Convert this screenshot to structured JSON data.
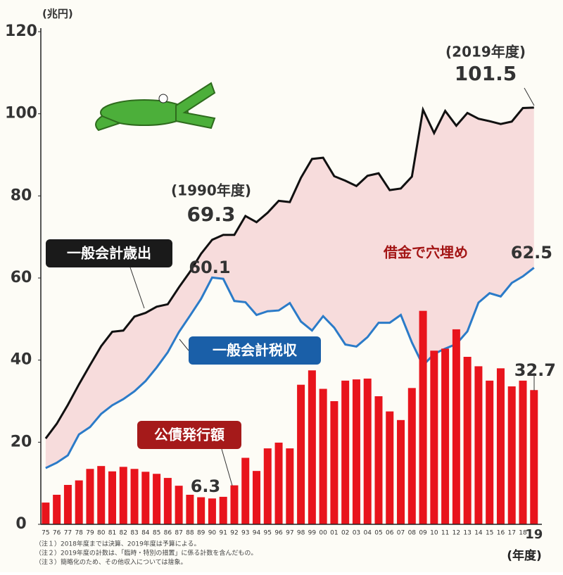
{
  "chart_data": {
    "type": "combo",
    "y_unit": "(兆円)",
    "x_label": "(年度)",
    "categories": [
      "75",
      "76",
      "77",
      "78",
      "79",
      "80",
      "81",
      "82",
      "83",
      "84",
      "85",
      "86",
      "87",
      "88",
      "89",
      "90",
      "91",
      "92",
      "93",
      "94",
      "95",
      "96",
      "97",
      "98",
      "99",
      "00",
      "01",
      "02",
      "03",
      "04",
      "05",
      "06",
      "07",
      "08",
      "09",
      "10",
      "11",
      "12",
      "13",
      "14",
      "15",
      "16",
      "17",
      "18",
      "19"
    ],
    "series": [
      {
        "name": "一般会計歳出",
        "type": "line",
        "color": "#111111",
        "values": [
          20.9,
          24.5,
          29.1,
          34.1,
          38.8,
          43.4,
          46.9,
          47.2,
          50.6,
          51.5,
          53.0,
          53.6,
          57.7,
          61.5,
          65.9,
          69.3,
          70.5,
          70.5,
          75.1,
          73.6,
          75.9,
          78.8,
          78.5,
          84.4,
          89.0,
          89.3,
          84.8,
          83.7,
          82.4,
          84.9,
          85.5,
          81.4,
          81.8,
          84.7,
          101.0,
          95.3,
          100.7,
          97.1,
          100.2,
          98.8,
          98.2,
          97.5,
          98.1,
          101.4,
          101.5
        ]
      },
      {
        "name": "一般会計税収",
        "type": "line",
        "color": "#2b7bc8",
        "values": [
          13.7,
          15.0,
          16.8,
          21.9,
          23.7,
          26.9,
          29.0,
          30.5,
          32.4,
          34.9,
          38.2,
          41.9,
          46.8,
          50.8,
          54.9,
          60.1,
          59.8,
          54.4,
          54.1,
          51.0,
          51.9,
          52.1,
          53.9,
          49.4,
          47.2,
          50.7,
          47.9,
          43.8,
          43.3,
          45.6,
          49.1,
          49.1,
          51.0,
          44.3,
          38.7,
          41.5,
          42.8,
          43.9,
          47.0,
          54.0,
          56.3,
          55.5,
          58.8,
          60.4,
          62.5
        ]
      },
      {
        "name": "公債発行額",
        "type": "bar",
        "color": "#e8141c",
        "values": [
          5.3,
          7.2,
          9.6,
          10.7,
          13.5,
          14.2,
          12.9,
          14.0,
          13.5,
          12.8,
          12.3,
          11.3,
          9.4,
          7.2,
          6.6,
          6.3,
          6.7,
          9.5,
          16.2,
          13.0,
          18.5,
          19.9,
          18.5,
          34.0,
          37.5,
          33.0,
          30.0,
          35.0,
          35.3,
          35.5,
          31.2,
          27.5,
          25.4,
          33.2,
          52.0,
          42.3,
          42.8,
          47.5,
          40.8,
          38.5,
          35.0,
          38.0,
          33.6,
          35.0,
          32.7
        ]
      }
    ],
    "fill_label": "借金で穴埋め",
    "annotations": [
      "(2019年度)",
      "(1990年度)"
    ],
    "ylim": [
      0,
      120
    ],
    "yticks": [
      0,
      20,
      40,
      60,
      80,
      100,
      120
    ],
    "grid": false,
    "notes": [
      "（注１）2018年度までは決算、2019年度は予算による。",
      "（注２）2019年度の計数は、「臨時・特別の措置」に係る計数を含んだもの。",
      "（注３）簡略化のため、その他収入については捨象。"
    ]
  }
}
